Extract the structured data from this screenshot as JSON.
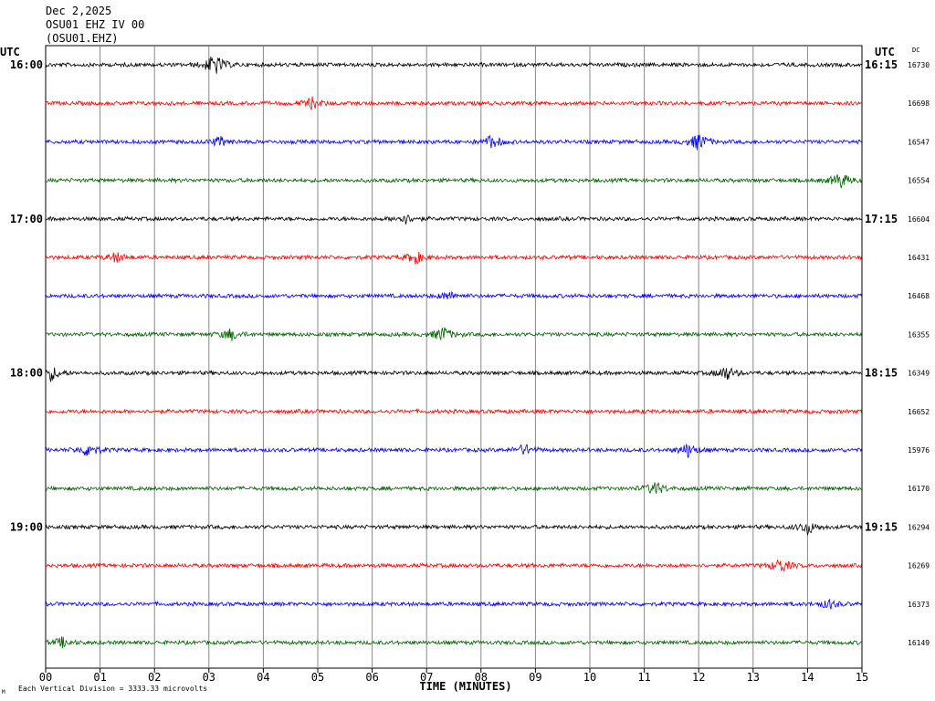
{
  "chart_data": {
    "type": "line",
    "header_lines": [
      "Dec 2,2025",
      "OSU01 EHZ IV 00",
      "(OSU01.EHZ)"
    ],
    "left_timezone": "UTC",
    "right_timezone": "UTC",
    "dc_label": "DC",
    "xlabel": "TIME (MINUTES)",
    "x_ticks": [
      "00",
      "01",
      "02",
      "03",
      "04",
      "05",
      "06",
      "07",
      "08",
      "09",
      "10",
      "11",
      "12",
      "13",
      "14",
      "15"
    ],
    "xlim": [
      0,
      15
    ],
    "left_time_labels": [
      {
        "row": 0,
        "label": "16:00"
      },
      {
        "row": 4,
        "label": "17:00"
      },
      {
        "row": 8,
        "label": "18:00"
      },
      {
        "row": 12,
        "label": "19:00"
      }
    ],
    "right_time_labels": [
      {
        "row": 0,
        "label": "16:15"
      },
      {
        "row": 4,
        "label": "17:15"
      },
      {
        "row": 8,
        "label": "18:15"
      },
      {
        "row": 12,
        "label": "19:15"
      }
    ],
    "dc_values": [
      "16730",
      "16698",
      "16547",
      "16554",
      "16604",
      "16431",
      "16468",
      "16355",
      "16349",
      "16652",
      "15976",
      "16170",
      "16294",
      "16269",
      "16373",
      "16149"
    ],
    "trace_colors": [
      "#000000",
      "#ff0000",
      "#0000ff",
      "#006400"
    ],
    "events": [
      [
        [
          3.1,
          3.2
        ]
      ],
      [
        [
          4.9,
          1.5
        ]
      ],
      [
        [
          8.2,
          1.8
        ],
        [
          12.0,
          2.4
        ],
        [
          3.2,
          1.3
        ]
      ],
      [
        [
          14.6,
          2.2
        ]
      ],
      [
        [
          6.6,
          1.3
        ]
      ],
      [
        [
          6.8,
          1.7
        ],
        [
          1.3,
          1.3
        ]
      ],
      [
        [
          7.4,
          1.1
        ]
      ],
      [
        [
          7.3,
          2.1
        ],
        [
          3.4,
          1.6
        ]
      ],
      [
        [
          0.1,
          2.0
        ],
        [
          12.5,
          2.0
        ]
      ],
      [],
      [
        [
          0.8,
          2.0
        ],
        [
          11.8,
          1.9
        ],
        [
          8.8,
          1.4
        ]
      ],
      [
        [
          11.2,
          1.9
        ]
      ],
      [
        [
          14.0,
          1.8
        ]
      ],
      [
        [
          13.5,
          2.0
        ]
      ],
      [
        [
          14.4,
          1.2
        ]
      ],
      [
        [
          0.3,
          1.3
        ]
      ]
    ],
    "footer_note": "Each Vertical Division = 3333.33 microvolts",
    "footer_mark": "M"
  }
}
